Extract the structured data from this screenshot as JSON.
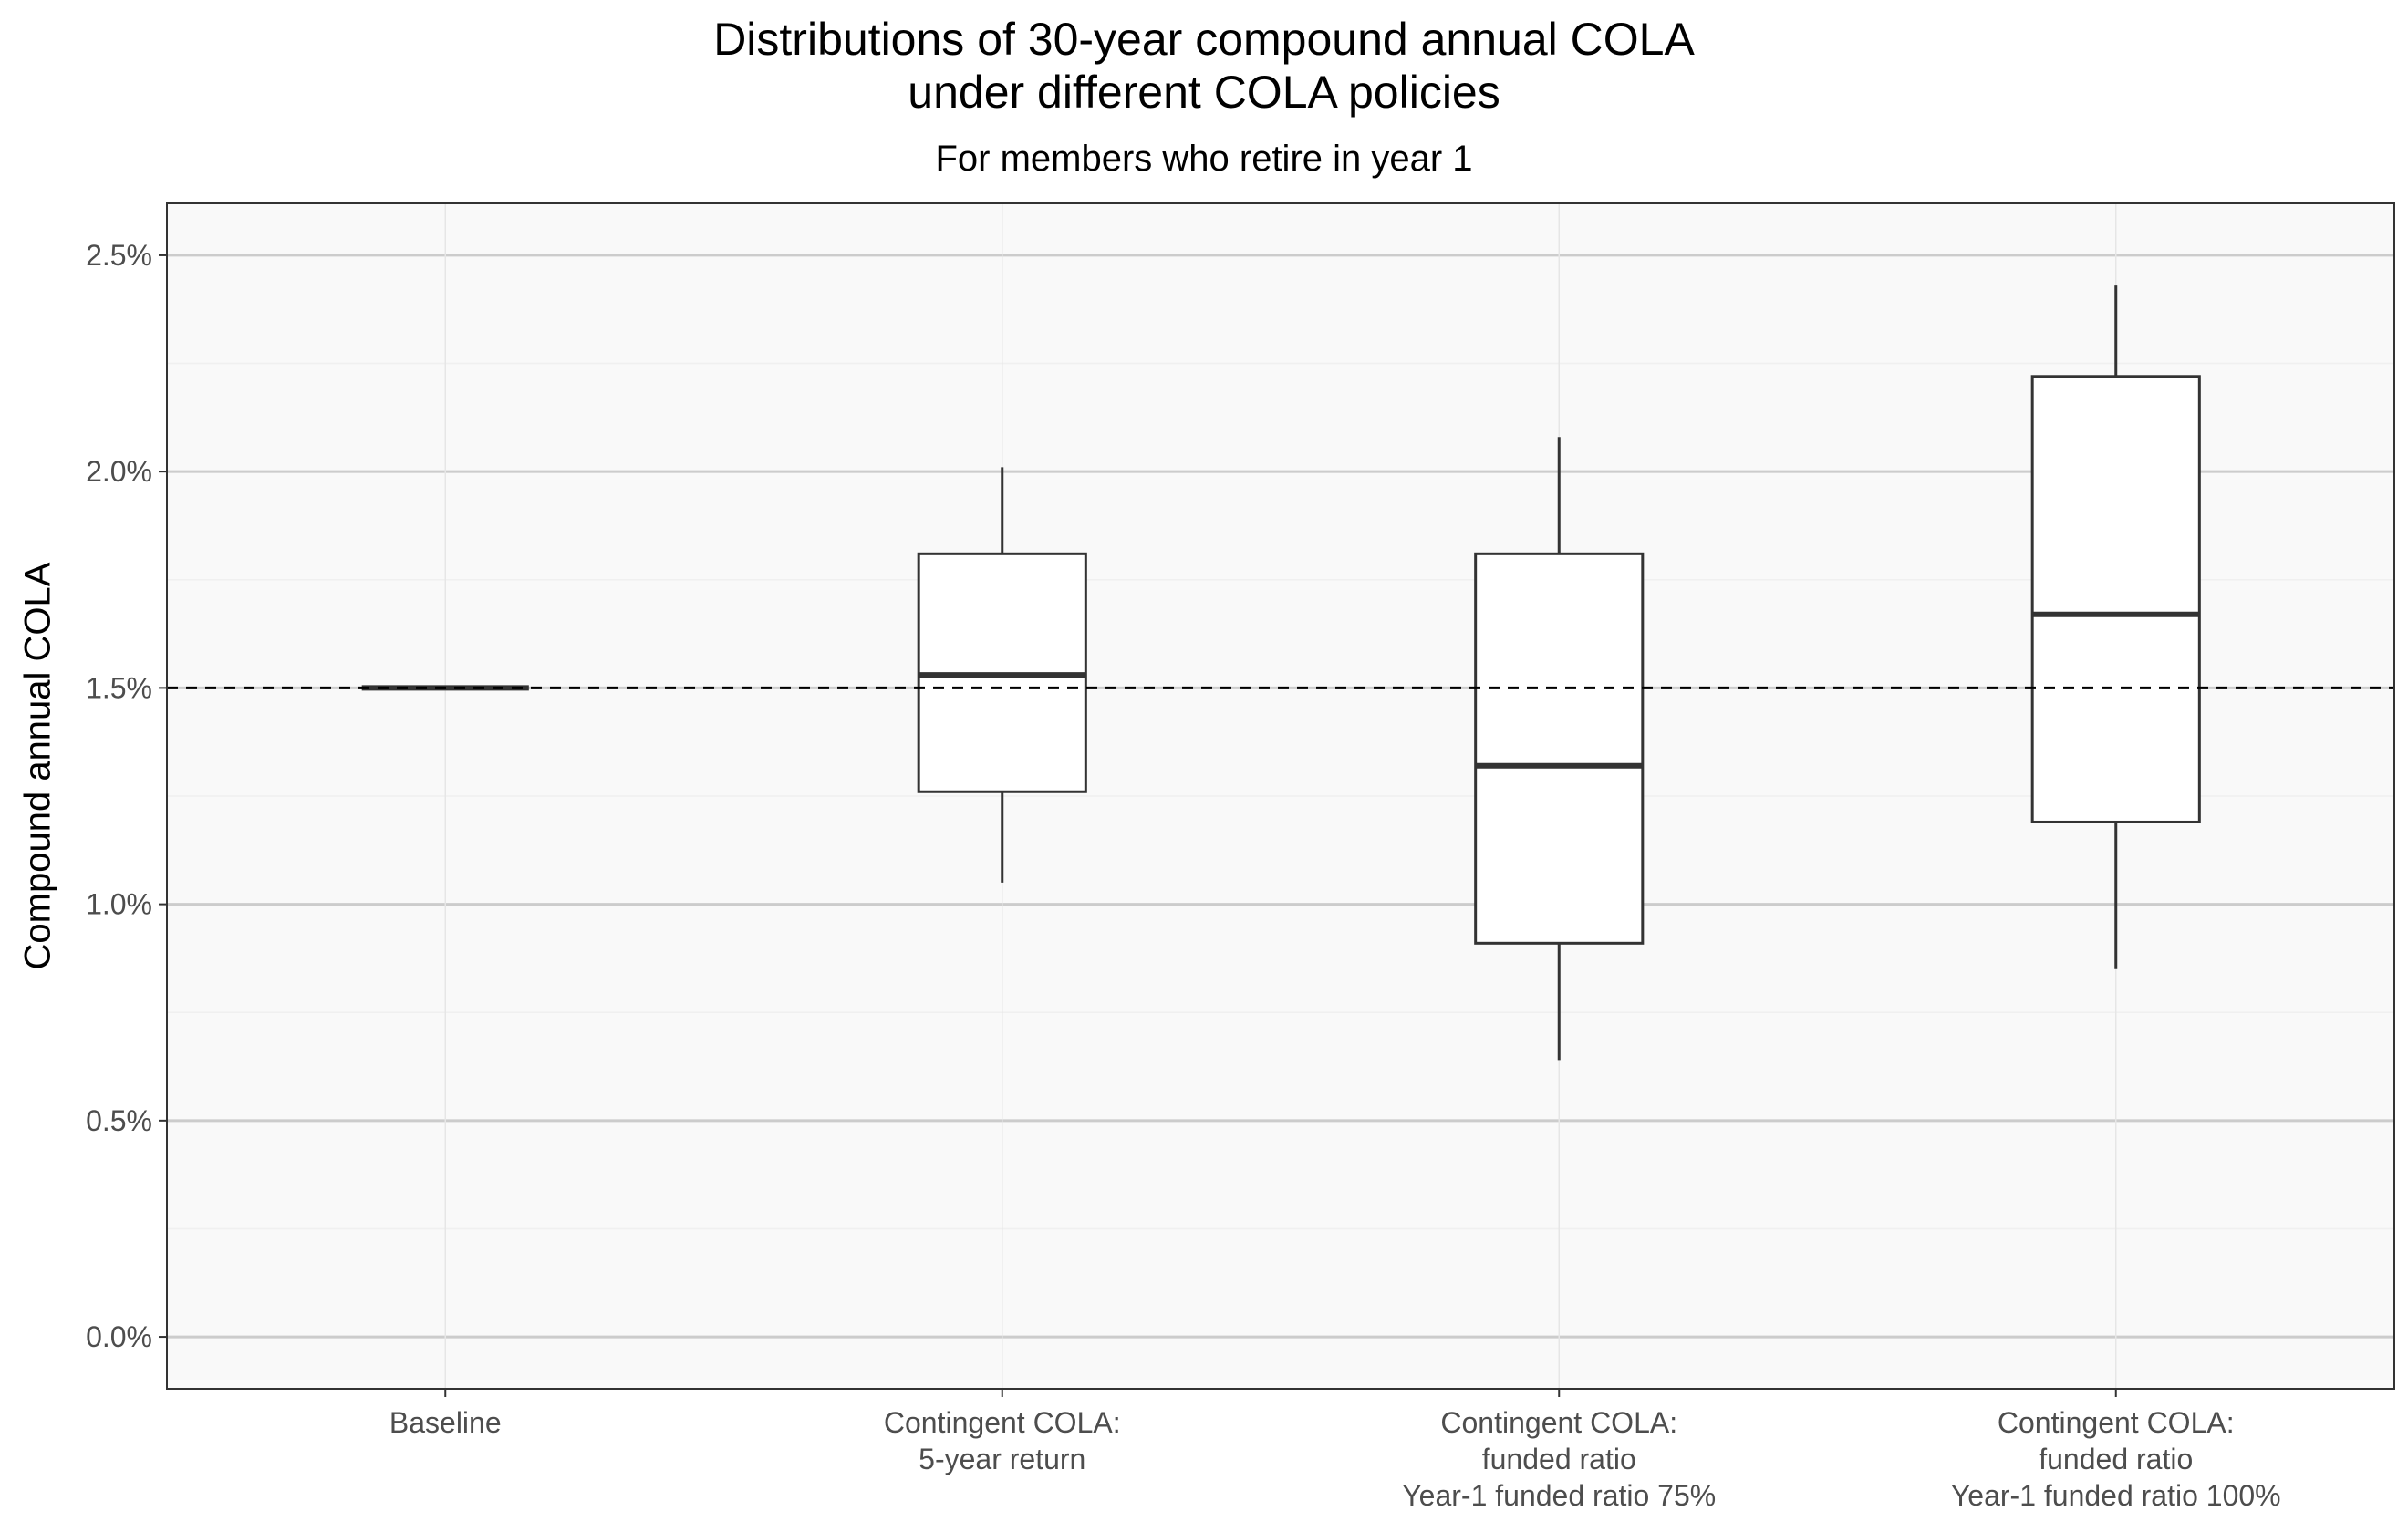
{
  "chart_data": {
    "type": "boxplot",
    "title": [
      "Distributions of 30-year compound annual COLA",
      "under different COLA policies"
    ],
    "subtitle": "For members who retire in year 1",
    "ylabel": "Compound annual COLA",
    "xlabel": "",
    "ylim": [
      -0.12,
      2.62
    ],
    "yticks": [
      0.0,
      0.5,
      1.0,
      1.5,
      2.0,
      2.5
    ],
    "ytick_labels": [
      "0.0%",
      "0.5%",
      "1.0%",
      "1.5%",
      "2.0%",
      "2.5%"
    ],
    "reference_line": {
      "y": 1.5,
      "style": "dashed"
    },
    "grid": true,
    "categories": [
      {
        "lines": [
          "Baseline"
        ]
      },
      {
        "lines": [
          "Contingent COLA:",
          "5-year return"
        ]
      },
      {
        "lines": [
          "Contingent COLA:",
          "funded ratio",
          "Year-1 funded ratio 75%"
        ]
      },
      {
        "lines": [
          "Contingent COLA:",
          "funded ratio",
          "Year-1 funded ratio 100%"
        ]
      }
    ],
    "boxes": [
      {
        "whisker_low": 1.5,
        "q1": 1.5,
        "median": 1.5,
        "q3": 1.5,
        "whisker_high": 1.5
      },
      {
        "whisker_low": 1.05,
        "q1": 1.26,
        "median": 1.53,
        "q3": 1.81,
        "whisker_high": 2.01
      },
      {
        "whisker_low": 0.64,
        "q1": 0.91,
        "median": 1.32,
        "q3": 1.81,
        "whisker_high": 2.08
      },
      {
        "whisker_low": 0.85,
        "q1": 1.19,
        "median": 1.67,
        "q3": 2.22,
        "whisker_high": 2.43
      }
    ],
    "colors": {
      "panel_bg": "#f9f9f9",
      "grid": "#cccccc",
      "box_fill": "#ffffff",
      "box_line": "#333333"
    }
  }
}
